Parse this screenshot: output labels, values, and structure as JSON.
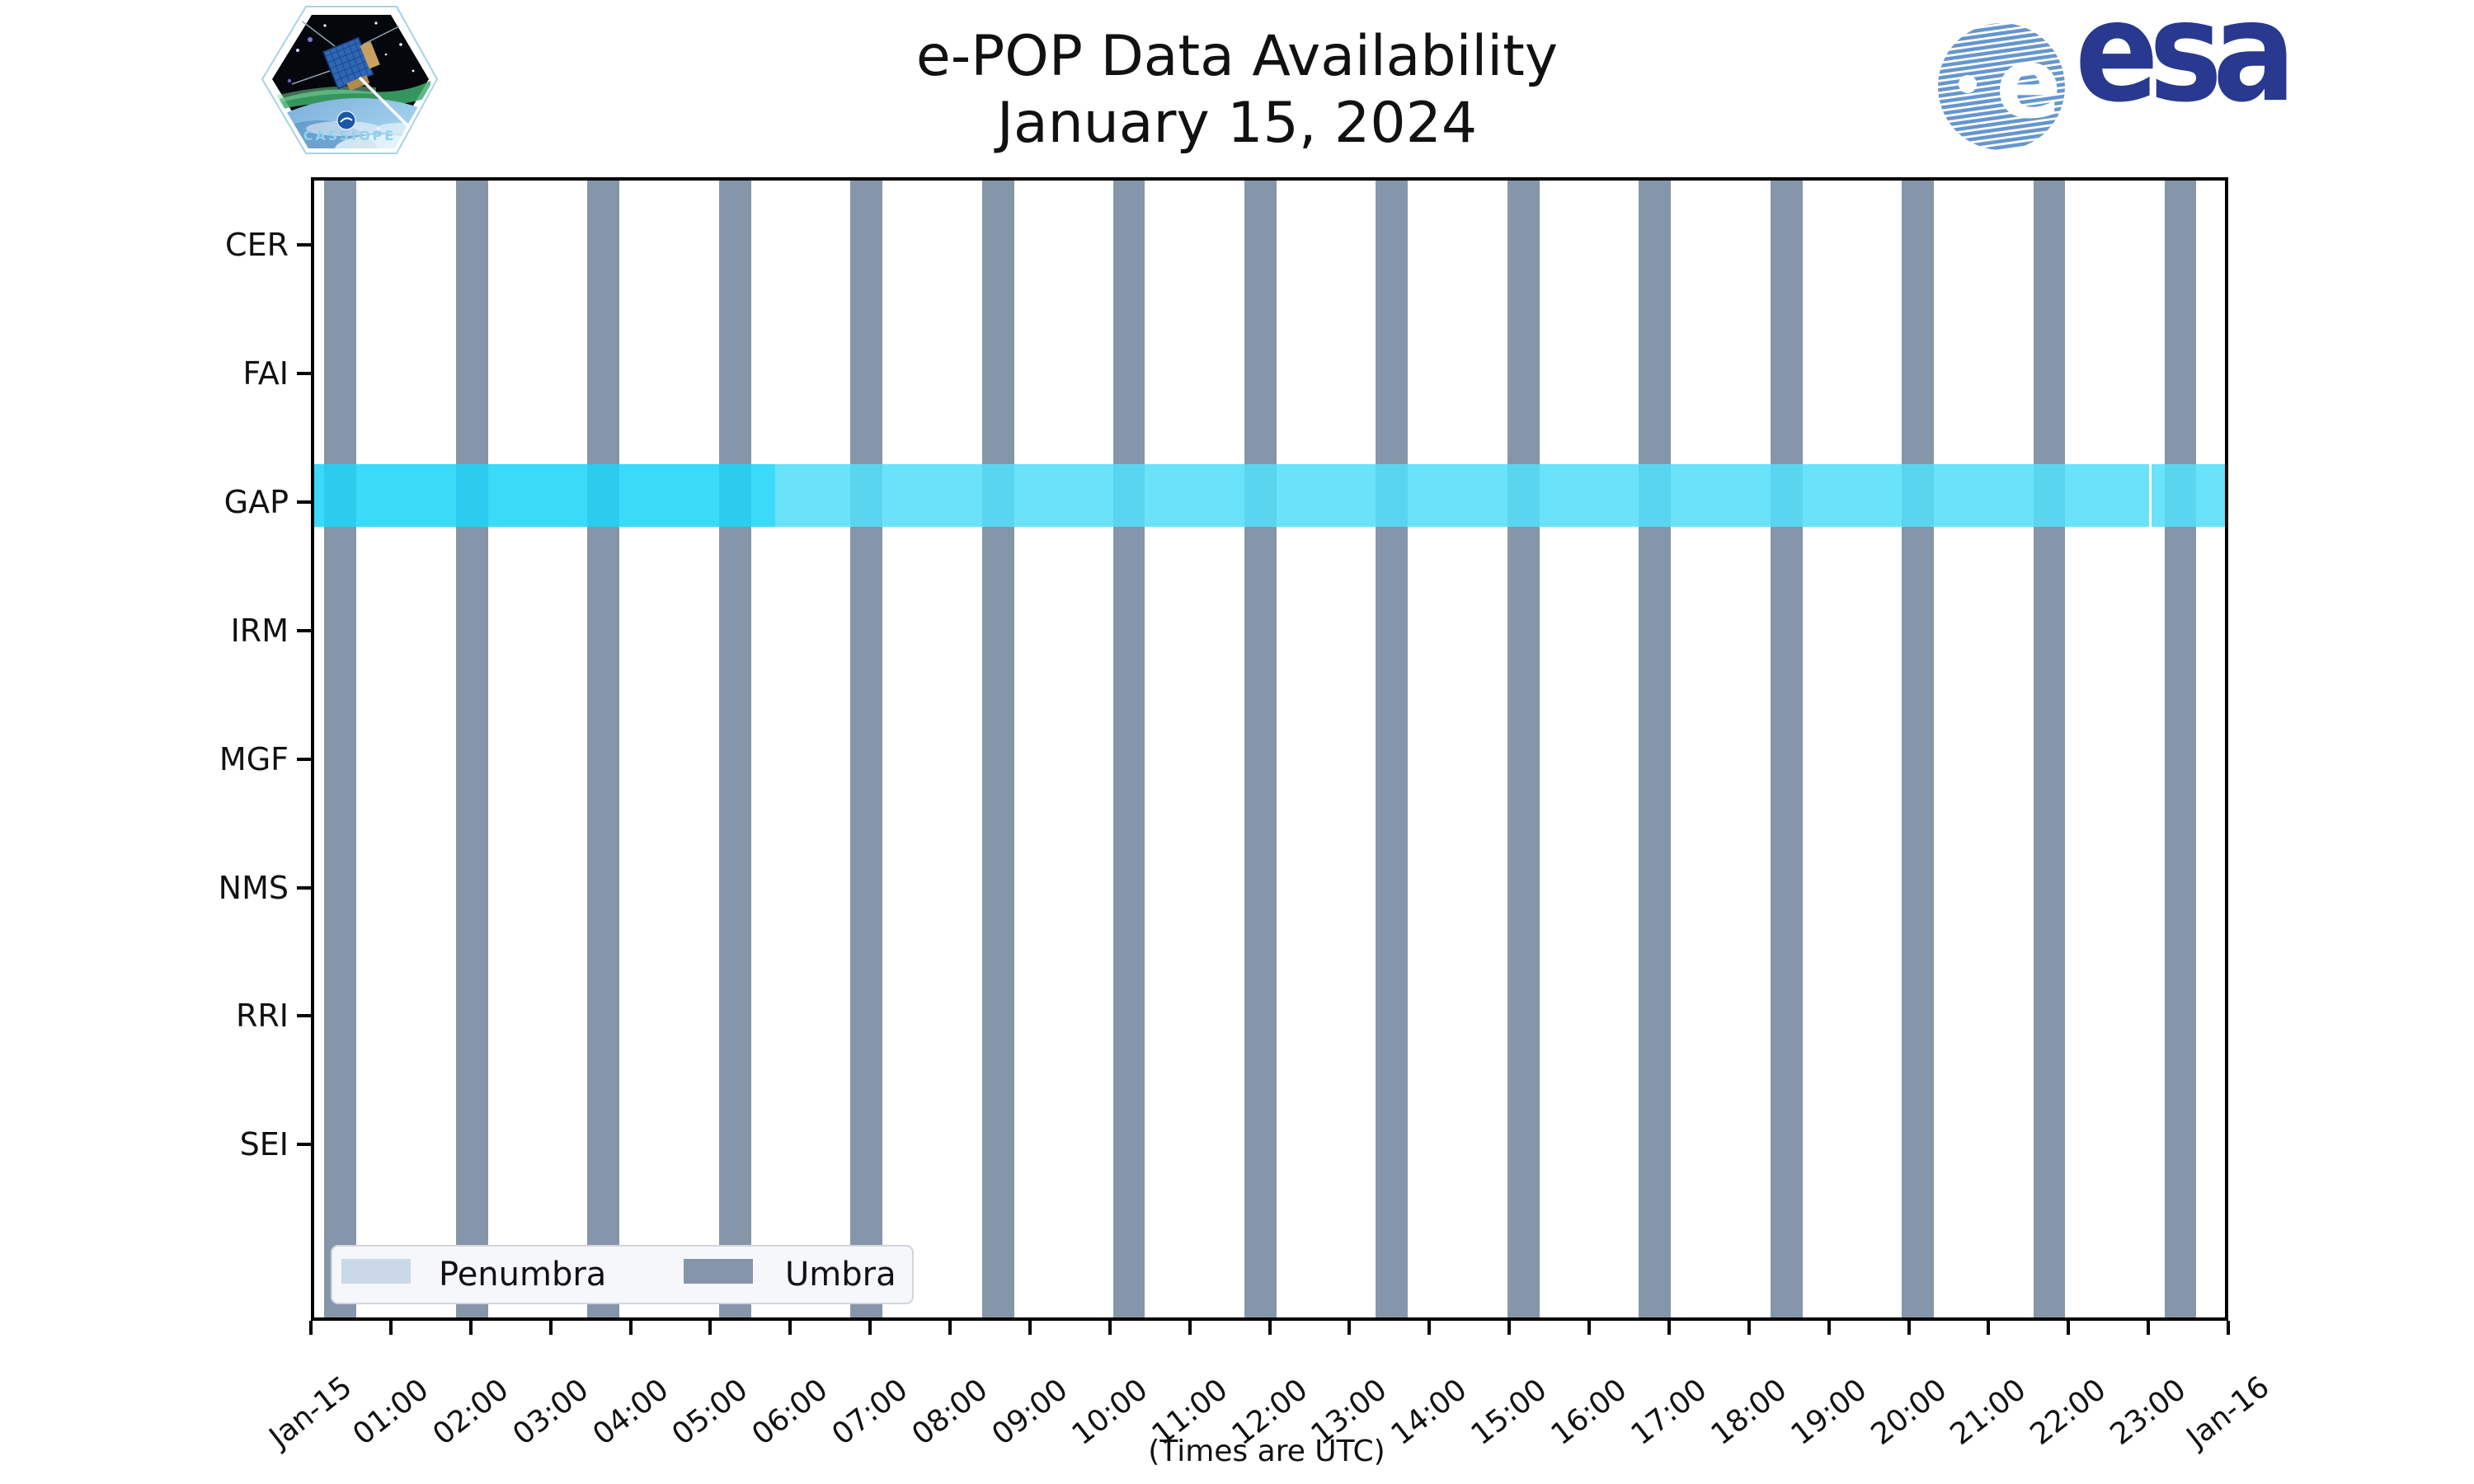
{
  "header": {
    "title_line1": "e-POP Data Availability",
    "title_line2": "January 15, 2024"
  },
  "logos": {
    "cassiope_label": "CASSIOPE",
    "esa_label": "esa"
  },
  "chart_data": {
    "type": "timeline",
    "title": "e-POP Data Availability — January 15, 2024",
    "xlabel": "(Times are UTC)",
    "x_range_hours": [
      0,
      24
    ],
    "x_ticks": [
      "Jan-15",
      "01:00",
      "02:00",
      "03:00",
      "04:00",
      "05:00",
      "06:00",
      "07:00",
      "08:00",
      "09:00",
      "10:00",
      "11:00",
      "12:00",
      "13:00",
      "14:00",
      "15:00",
      "16:00",
      "17:00",
      "18:00",
      "19:00",
      "20:00",
      "21:00",
      "22:00",
      "23:00",
      "Jan-16"
    ],
    "instruments": [
      "CER",
      "FAI",
      "GAP",
      "IRM",
      "MGF",
      "NMS",
      "RRI",
      "SEI"
    ],
    "umbra": {
      "label": "Umbra",
      "color": "#8696aa",
      "width_hours": 0.4,
      "centers_hours": [
        0.37,
        2.02,
        3.66,
        5.31,
        6.95,
        8.6,
        10.24,
        11.89,
        13.53,
        15.18,
        16.82,
        18.47,
        20.11,
        21.76,
        23.4
      ]
    },
    "penumbra": {
      "label": "Penumbra",
      "color": "#cbd8e8"
    },
    "gap_band": {
      "instrument": "GAP",
      "colors": {
        "bright": "rgba(30,213,248,0.87)",
        "light": "rgba(84,223,249,0.87)"
      },
      "segments": [
        {
          "start_h": 0.0,
          "end_h": 5.81,
          "shade": "bright"
        },
        {
          "start_h": 5.81,
          "end_h": 23.01,
          "shade": "light"
        },
        {
          "start_h": 23.04,
          "end_h": 23.96,
          "shade": "light"
        }
      ]
    }
  },
  "legend": {
    "items": [
      {
        "label": "Penumbra",
        "color": "#cbd8e8"
      },
      {
        "label": "Umbra",
        "color": "#8696aa"
      }
    ]
  }
}
